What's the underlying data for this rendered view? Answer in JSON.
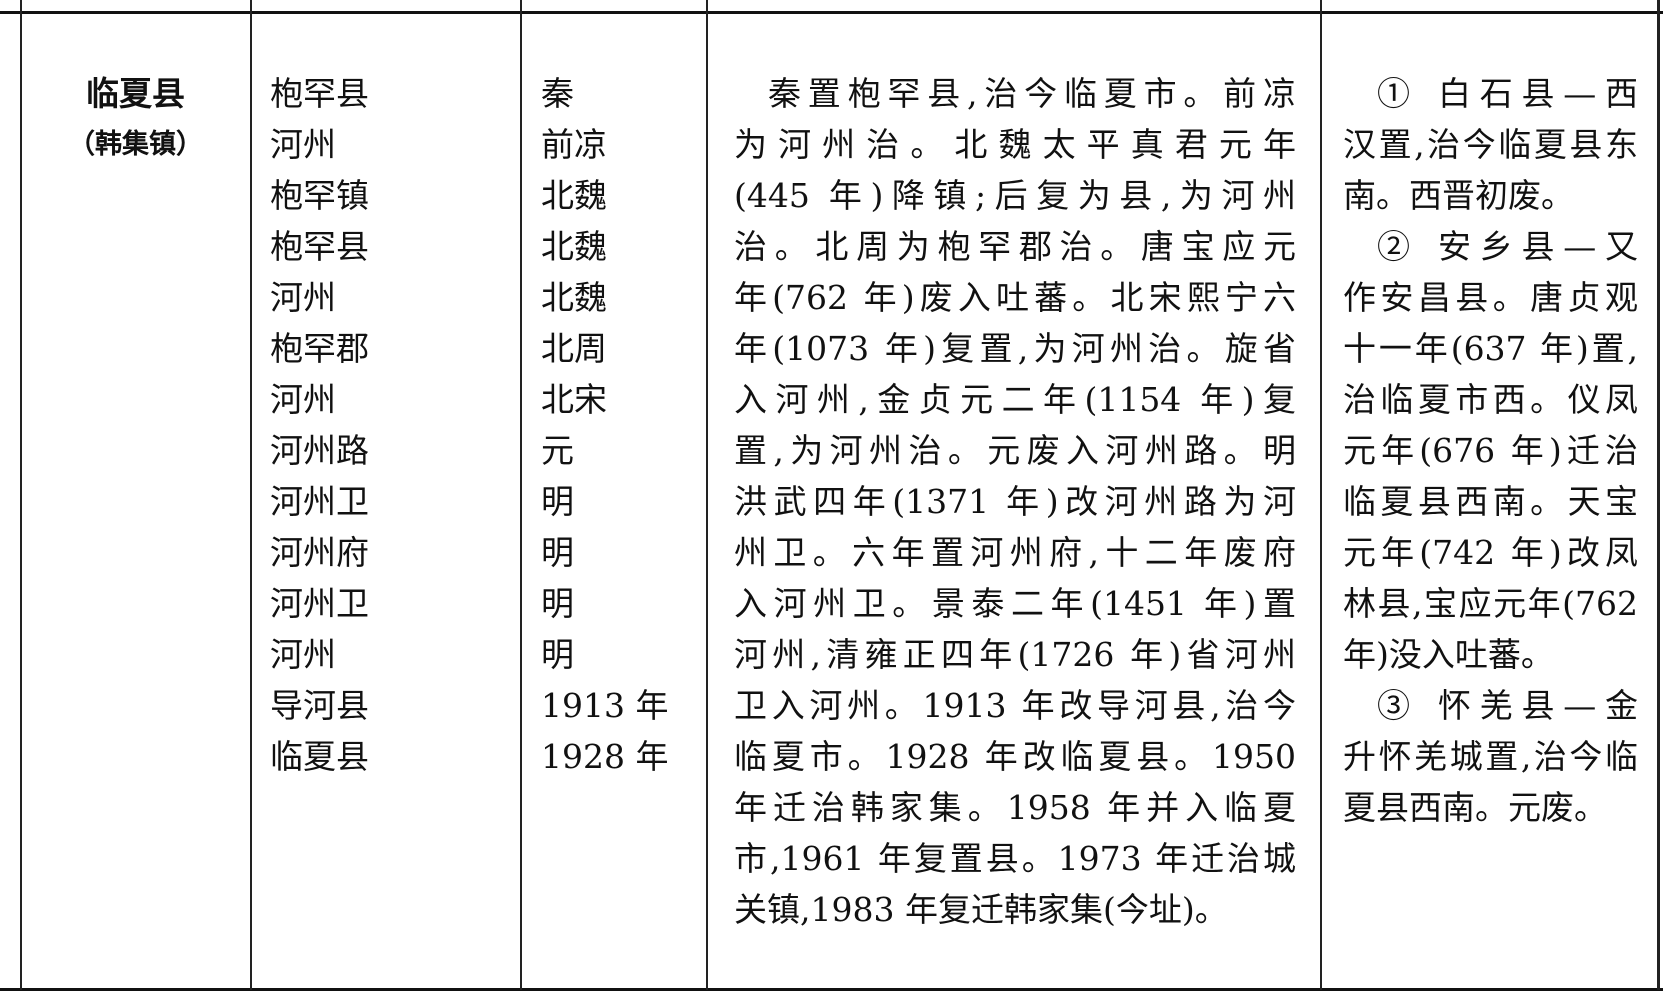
{
  "row": {
    "county": "临夏县",
    "seat": "（韩集镇）",
    "historical_names": [
      "枹罕县",
      "河州",
      "枹罕镇",
      "枹罕县",
      "河州",
      "枹罕郡",
      "河州",
      "河州路",
      "河州卫",
      "河州府",
      "河州卫",
      "河州",
      "导河县",
      "临夏县"
    ],
    "periods": [
      "秦",
      "前凉",
      "北魏",
      "北魏",
      "北魏",
      "北周",
      "北宋",
      "元",
      "明",
      "明",
      "明",
      "明",
      "1913 年",
      "1928 年"
    ],
    "history_lines": [
      "秦置枹罕县,治今临夏市。前凉",
      "为河州治。北魏太平真君元年",
      "(445 年)降镇;后复为县,为河州",
      "治。北周为枹罕郡治。唐宝应元",
      "年(762 年)废入吐蕃。北宋熙宁六",
      "年(1073 年)复置,为河州治。旋省",
      "入河州,金贞元二年(1154 年)复",
      "置,为河州治。元废入河州路。明",
      "洪武四年(1371 年)改河州路为河",
      "州卫。六年置河州府,十二年废府",
      "入河州卫。景泰二年(1451 年)置",
      "河州,清雍正四年(1726 年)省河州",
      "卫入河州。1913 年改导河县,治今",
      "临夏市。1928 年改临夏县。1950",
      "年迁治韩家集。1958 年并入临夏",
      "市,1961 年复置县。1973 年迁治城",
      "关镇,1983 年复迁韩家集(今址)。"
    ],
    "notes_lines": [
      "① 白石县—西",
      "汉置,治今临夏县东",
      "南。西晋初废。",
      "② 安乡县—又",
      "作安昌县。唐贞观",
      "十一年(637 年)置,",
      "治临夏市西。仪凤",
      "元年(676 年)迁治",
      "临夏县西南。天宝",
      "元年(742 年)改凤",
      "林县,宝应元年(762",
      "年)没入吐蕃。",
      "③ 怀羌县—金",
      "升怀羌城置,治今临",
      "夏县西南。元废。"
    ]
  }
}
